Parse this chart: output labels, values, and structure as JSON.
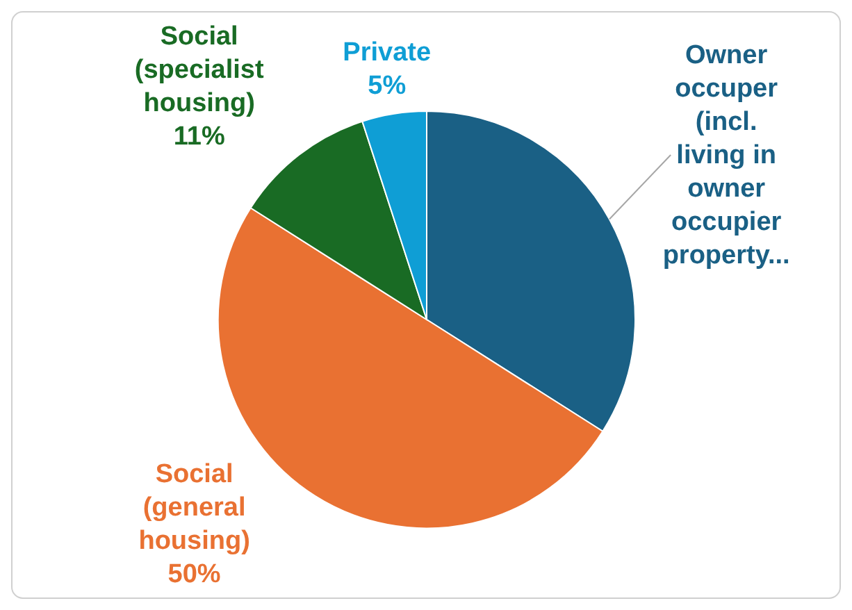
{
  "chart_data": {
    "type": "pie",
    "categories": [
      "Owner occuper (incl. living in owner occupier property...",
      "Social (general housing)",
      "Social (specialist housing)",
      "Private"
    ],
    "values": [
      34,
      50,
      11,
      5
    ],
    "value_labels": [
      null,
      "50%",
      "11%",
      "5%"
    ],
    "colors": [
      "#1a6085",
      "#e97132",
      "#196b24",
      "#0f9ed5"
    ]
  }
}
